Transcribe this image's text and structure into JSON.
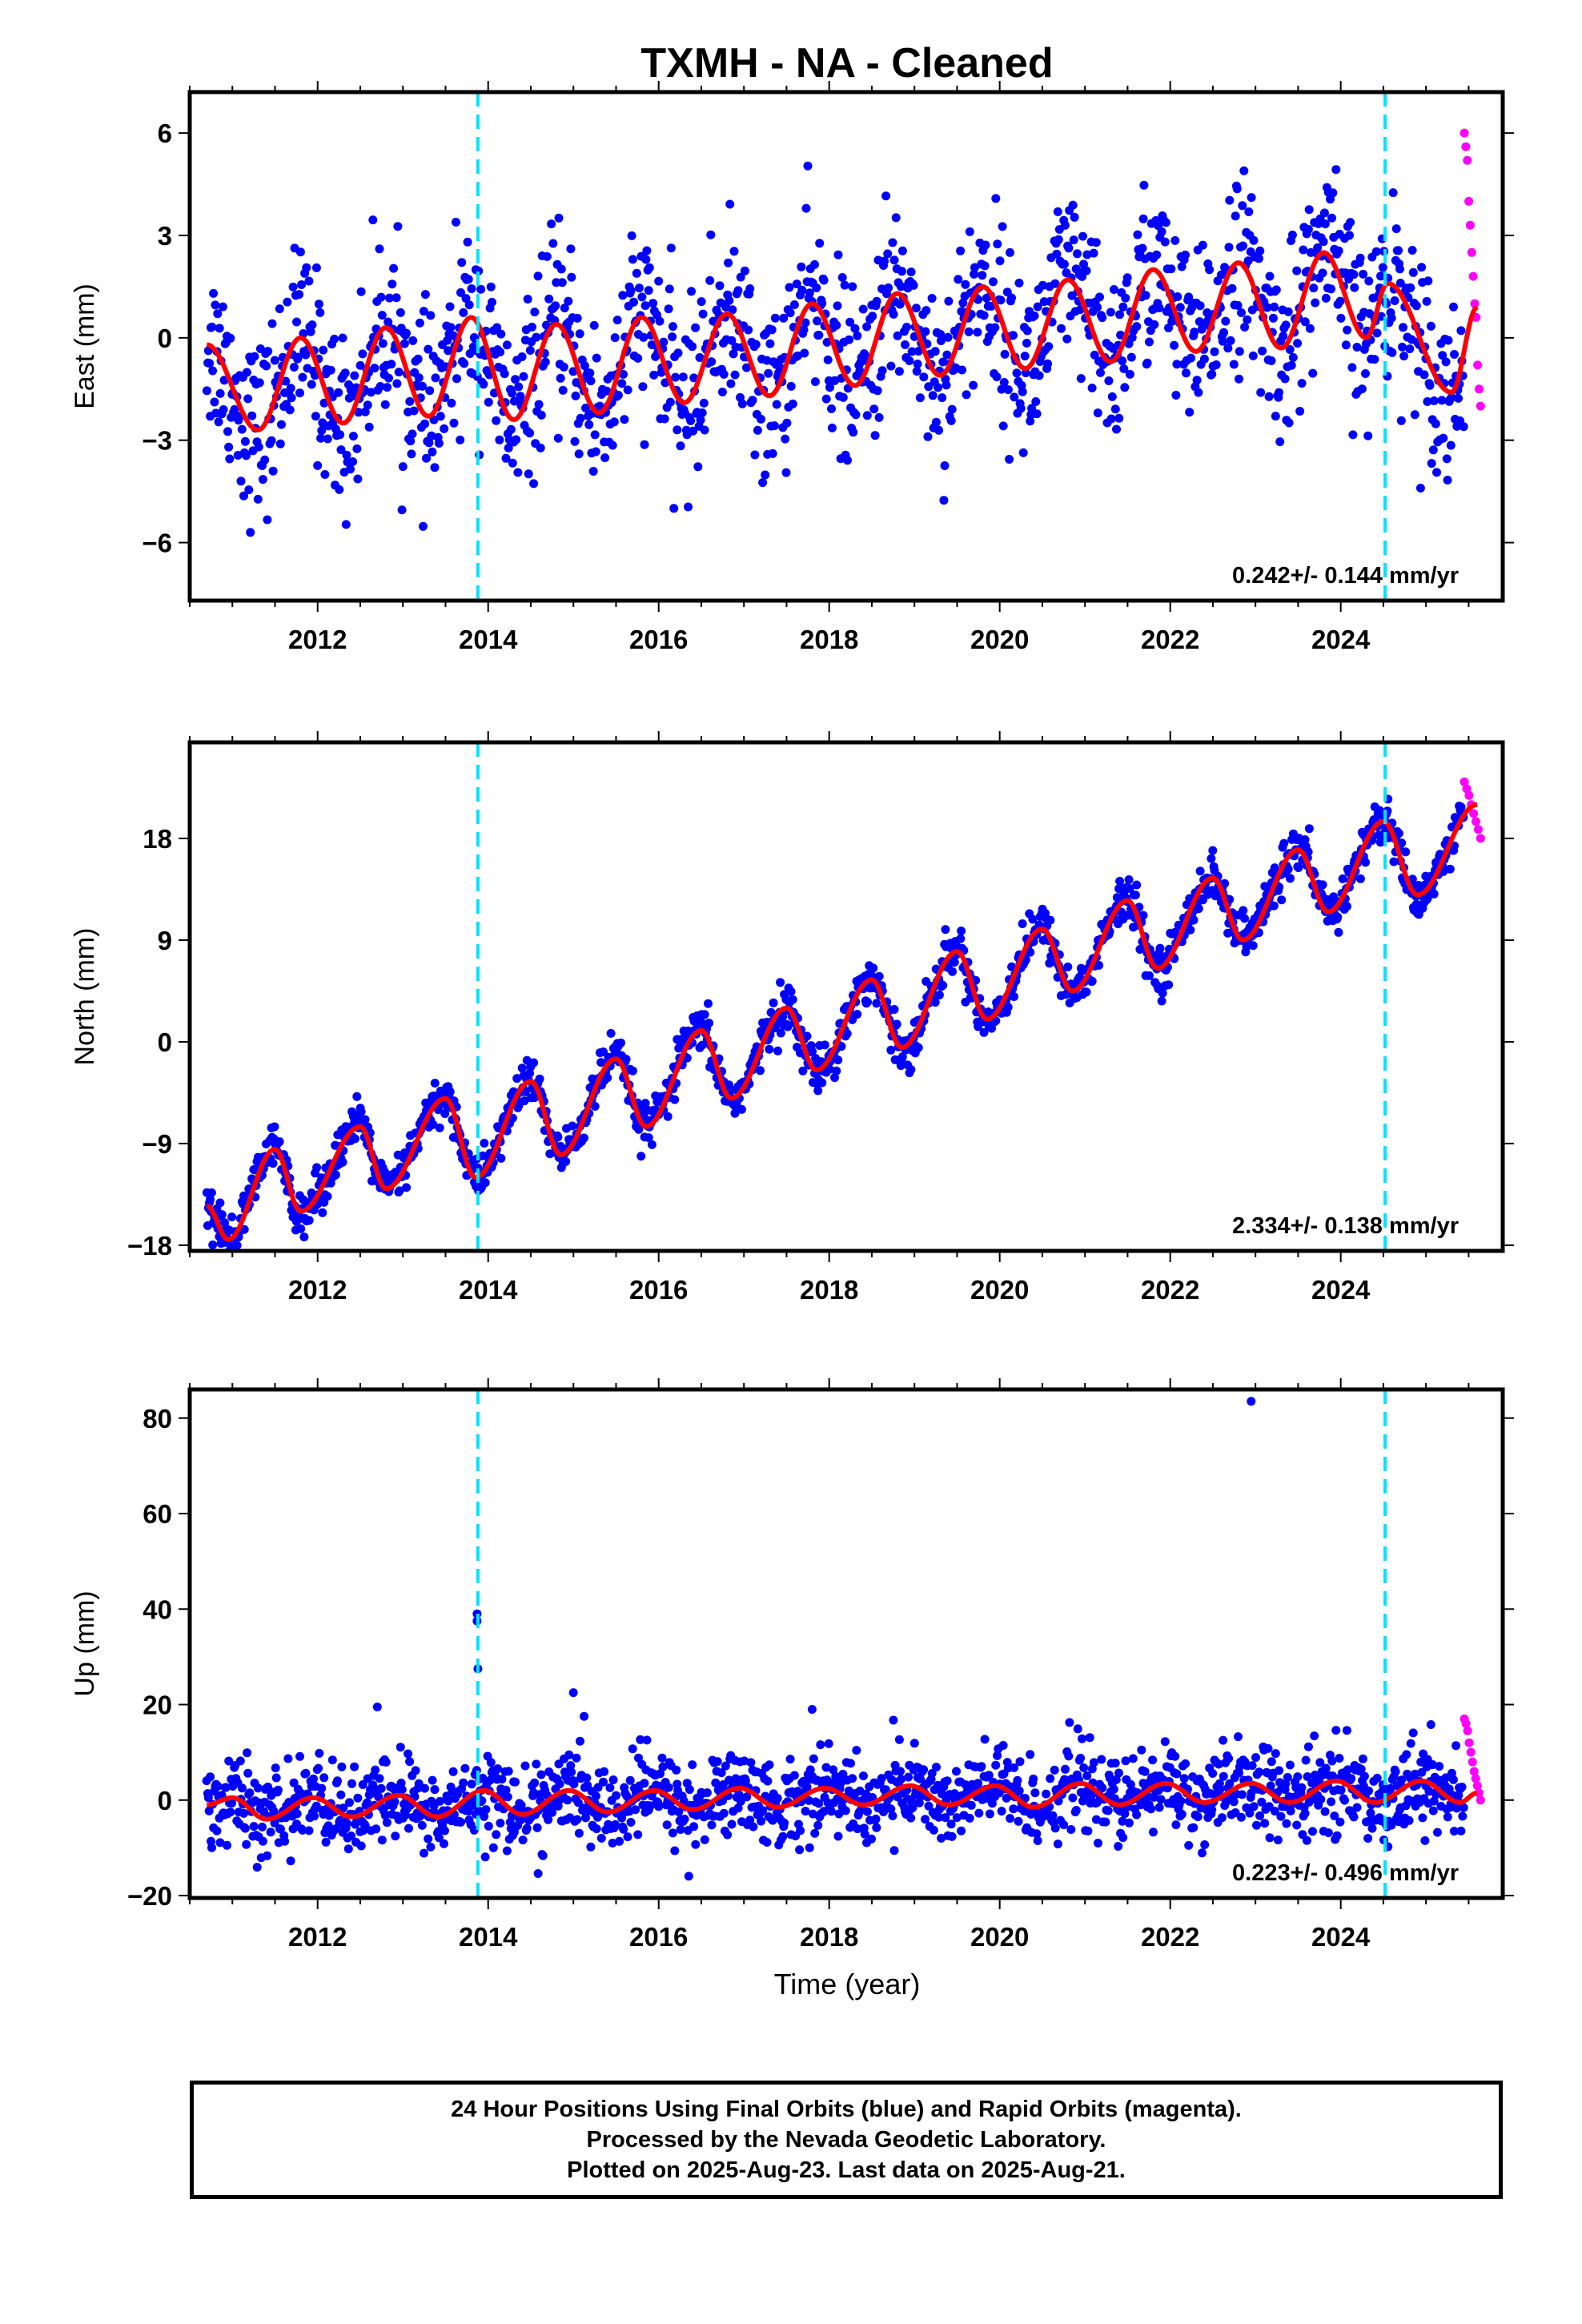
{
  "title": "TXMH  - NA - Cleaned",
  "xlabel": "Time (year)",
  "colors": {
    "final_orbits": "#0000ff",
    "rapid_orbits": "#ff00ff",
    "model_fit": "#ff0000",
    "event_lines": "#00e5ff"
  },
  "footer": {
    "line1": "24 Hour Positions Using Final Orbits (blue) and Rapid Orbits (magenta).",
    "line2": "Processed by the Nevada Geodetic Laboratory.",
    "line3": "Plotted on 2025-Aug-23. Last data on 2025-Aug-21."
  },
  "chart_data": [
    {
      "type": "scatter",
      "component": "East",
      "ylabel": "East (mm)",
      "rate_label": "0.242+/- 0.144 mm/yr",
      "xlim": [
        2010.5,
        2025.9
      ],
      "ylim": [
        -7.7,
        7.2
      ],
      "x_ticks": [
        2012,
        2014,
        2016,
        2018,
        2020,
        2022,
        2024
      ],
      "y_ticks": [
        -6,
        -3,
        0,
        3,
        6
      ],
      "y_tick_labels": [
        "−6",
        "−3",
        "0",
        "3",
        "6"
      ],
      "event_lines_x": [
        2013.88,
        2024.52
      ],
      "series": [
        {
          "style": "scatter",
          "color": "blue",
          "x_range": [
            2010.7,
            2025.45
          ],
          "trend_start": -0.9,
          "trend_end": 1.0,
          "seasonal_amplitude": 1.5,
          "spread": 1.3
        },
        {
          "style": "scatter",
          "color": "magenta",
          "x_range": [
            2025.45,
            2025.64
          ],
          "y_values": [
            6.0,
            5.6,
            5.2,
            4.0,
            3.3,
            2.5,
            1.8,
            1.0,
            0.6,
            -0.8,
            -1.5,
            -2.0
          ]
        },
        {
          "style": "line",
          "color": "red",
          "description_points": [
            [
              2010.7,
              -0.2
            ],
            [
              2011.3,
              -2.7
            ],
            [
              2011.8,
              0.0
            ],
            [
              2012.3,
              -2.5
            ],
            [
              2012.8,
              0.3
            ],
            [
              2013.3,
              -2.3
            ],
            [
              2013.8,
              0.6
            ],
            [
              2014.3,
              -2.4
            ],
            [
              2014.8,
              0.4
            ],
            [
              2015.3,
              -2.2
            ],
            [
              2015.8,
              0.6
            ],
            [
              2016.3,
              -1.9
            ],
            [
              2016.8,
              0.7
            ],
            [
              2017.3,
              -1.7
            ],
            [
              2017.8,
              1.0
            ],
            [
              2018.3,
              -1.4
            ],
            [
              2018.8,
              1.3
            ],
            [
              2019.3,
              -1.1
            ],
            [
              2019.8,
              1.5
            ],
            [
              2020.3,
              -0.9
            ],
            [
              2020.8,
              1.7
            ],
            [
              2021.3,
              -0.7
            ],
            [
              2021.8,
              2.0
            ],
            [
              2022.3,
              -0.4
            ],
            [
              2022.8,
              2.2
            ],
            [
              2023.3,
              -0.3
            ],
            [
              2023.8,
              2.5
            ],
            [
              2024.3,
              0.0
            ],
            [
              2024.55,
              1.6
            ],
            [
              2025.3,
              -1.6
            ],
            [
              2025.6,
              0.9
            ]
          ]
        }
      ]
    },
    {
      "type": "scatter",
      "component": "North",
      "ylabel": "North (mm)",
      "rate_label": "2.334+/- 0.138 mm/yr",
      "xlim": [
        2010.5,
        2025.9
      ],
      "ylim": [
        -18.5,
        26.5
      ],
      "x_ticks": [
        2012,
        2014,
        2016,
        2018,
        2020,
        2022,
        2024
      ],
      "y_ticks": [
        -18,
        -9,
        0,
        9,
        18
      ],
      "y_tick_labels": [
        "−18",
        "−9",
        "0",
        "9",
        "18"
      ],
      "event_lines_x": [
        2013.88,
        2024.52
      ],
      "series": [
        {
          "style": "scatter",
          "color": "blue",
          "x_range": [
            2010.7,
            2025.45
          ],
          "trend_start": -16.0,
          "trend_end": 18.0,
          "seasonal_amplitude": 2.8,
          "spread": 1.0
        },
        {
          "style": "scatter",
          "color": "magenta",
          "x_range": [
            2025.45,
            2025.64
          ],
          "y_values": [
            23.0,
            22.4,
            21.8,
            21.0,
            20.2,
            19.5,
            18.8,
            18.0
          ]
        },
        {
          "style": "line",
          "color": "red",
          "description_points": [
            [
              2010.7,
              -14.5
            ],
            [
              2010.95,
              -17.5
            ],
            [
              2011.5,
              -9.5
            ],
            [
              2011.8,
              -15.0
            ],
            [
              2012.5,
              -7.5
            ],
            [
              2012.8,
              -13.0
            ],
            [
              2013.5,
              -5.0
            ],
            [
              2013.85,
              -12.0
            ],
            [
              2014.5,
              -3.5
            ],
            [
              2014.85,
              -10.0
            ],
            [
              2015.5,
              -1.5
            ],
            [
              2015.85,
              -7.5
            ],
            [
              2016.5,
              1.0
            ],
            [
              2016.85,
              -5.0
            ],
            [
              2017.5,
              3.0
            ],
            [
              2017.85,
              -2.5
            ],
            [
              2018.5,
              5.5
            ],
            [
              2018.85,
              -0.5
            ],
            [
              2019.5,
              8.0
            ],
            [
              2019.85,
              2.0
            ],
            [
              2020.5,
              10.0
            ],
            [
              2020.85,
              4.5
            ],
            [
              2021.5,
              12.5
            ],
            [
              2021.85,
              6.5
            ],
            [
              2022.5,
              14.5
            ],
            [
              2022.85,
              9.0
            ],
            [
              2023.5,
              17.0
            ],
            [
              2023.85,
              11.5
            ],
            [
              2024.5,
              19.5
            ],
            [
              2024.9,
              13.0
            ],
            [
              2025.6,
              21.0
            ]
          ]
        }
      ]
    },
    {
      "type": "scatter",
      "component": "Up",
      "ylabel": "Up (mm)",
      "rate_label": "0.223+/- 0.496 mm/yr",
      "xlim": [
        2010.5,
        2025.9
      ],
      "ylim": [
        -20.5,
        86
      ],
      "x_ticks": [
        2012,
        2014,
        2016,
        2018,
        2020,
        2022,
        2024
      ],
      "y_ticks": [
        -20,
        0,
        20,
        40,
        60,
        80
      ],
      "y_tick_labels": [
        "−20",
        "0",
        "20",
        "40",
        "60",
        "80"
      ],
      "event_lines_x": [
        2013.88,
        2024.52
      ],
      "series": [
        {
          "style": "scatter",
          "color": "blue",
          "x_range": [
            2010.7,
            2025.45
          ],
          "trend_start": -1.0,
          "trend_end": 1.5,
          "seasonal_amplitude": 2.5,
          "spread": 4.5,
          "outliers": [
            [
              2013.87,
              39.0
            ],
            [
              2013.87,
              37.5
            ],
            [
              2013.88,
              27.5
            ],
            [
              2022.95,
              83.5
            ],
            [
              2015.0,
              22.5
            ],
            [
              2012.7,
              19.5
            ],
            [
              2017.8,
              19.0
            ]
          ]
        },
        {
          "style": "scatter",
          "color": "magenta",
          "x_range": [
            2025.45,
            2025.64
          ],
          "y_values": [
            17.0,
            16.0,
            14.5,
            12.0,
            10.0,
            8.0,
            6.0,
            4.5,
            3.0,
            1.5,
            0.0
          ]
        },
        {
          "style": "line",
          "color": "red",
          "description_points": [
            [
              2010.7,
              -1.0
            ],
            [
              2011.0,
              0.5
            ],
            [
              2011.4,
              -4.0
            ],
            [
              2011.95,
              0.5
            ],
            [
              2012.4,
              -3.5
            ],
            [
              2012.95,
              1.0
            ],
            [
              2013.4,
              -3.5
            ],
            [
              2013.95,
              2.0
            ],
            [
              2014.4,
              -3.0
            ],
            [
              2014.95,
              2.0
            ],
            [
              2015.4,
              -2.5
            ],
            [
              2015.95,
              2.0
            ],
            [
              2016.4,
              -2.0
            ],
            [
              2016.95,
              2.5
            ],
            [
              2017.4,
              -1.5
            ],
            [
              2017.95,
              2.5
            ],
            [
              2018.4,
              -1.0
            ],
            [
              2018.95,
              3.0
            ],
            [
              2019.4,
              -1.0
            ],
            [
              2019.95,
              3.0
            ],
            [
              2020.4,
              -1.5
            ],
            [
              2020.95,
              3.5
            ],
            [
              2021.4,
              -1.0
            ],
            [
              2021.95,
              3.5
            ],
            [
              2022.4,
              -0.5
            ],
            [
              2022.95,
              3.5
            ],
            [
              2023.4,
              -0.5
            ],
            [
              2023.95,
              4.0
            ],
            [
              2024.4,
              -0.5
            ],
            [
              2024.95,
              4.0
            ],
            [
              2025.4,
              -0.5
            ],
            [
              2025.6,
              1.5
            ]
          ]
        }
      ]
    }
  ]
}
